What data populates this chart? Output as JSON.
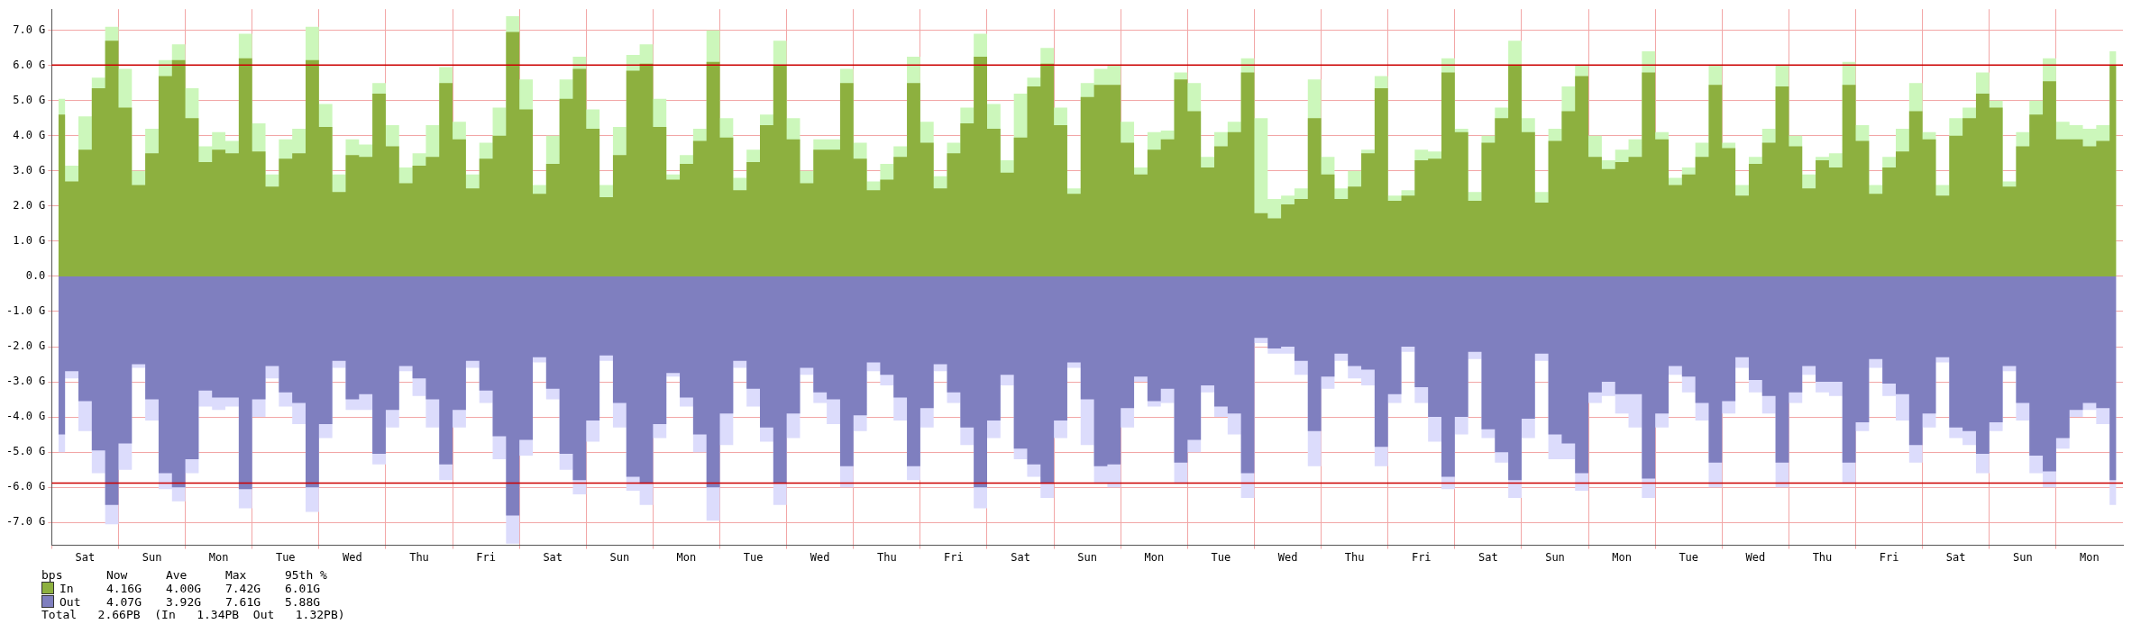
{
  "chart_data": {
    "type": "area",
    "categories": [
      null,
      null,
      "Sat",
      null,
      null,
      null,
      null,
      "Sun",
      null,
      null,
      null,
      null,
      "Mon",
      null,
      null,
      null,
      null,
      "Tue",
      null,
      null,
      null,
      null,
      "Wed",
      null,
      null,
      null,
      null,
      "Thu",
      null,
      null,
      null,
      null,
      "Fri",
      null,
      null,
      null,
      null,
      "Sat",
      null,
      null,
      null,
      null,
      "Sun",
      null,
      null,
      null,
      null,
      "Mon",
      null,
      null,
      null,
      null,
      "Tue",
      null,
      null,
      null,
      null,
      "Wed",
      null,
      null,
      null,
      null,
      "Thu",
      null,
      null,
      null,
      null,
      "Fri",
      null,
      null,
      null,
      null,
      "Sat",
      null,
      null,
      null,
      null,
      "Sun",
      null,
      null,
      null,
      null,
      "Mon",
      null,
      null,
      null,
      null,
      "Tue",
      null,
      null,
      null,
      null,
      "Wed",
      null,
      null,
      null,
      null,
      "Thu",
      null,
      null,
      null,
      null,
      "Fri",
      null,
      null,
      null,
      null,
      "Sat",
      null,
      null,
      null,
      null,
      "Sun",
      null,
      null,
      null,
      null,
      "Mon",
      null,
      null,
      null,
      null,
      "Tue",
      null,
      null,
      null,
      null,
      "Wed",
      null,
      null,
      null,
      null,
      "Thu",
      null,
      null,
      null,
      null,
      "Fri",
      null,
      null,
      null,
      null,
      "Sat",
      null,
      null,
      null,
      null,
      "Sun",
      null,
      null,
      null,
      null,
      "Mon",
      null,
      null
    ],
    "series": [
      {
        "name": "In",
        "color": "#8db03f",
        "values": [
          4.6,
          2.7,
          3.6,
          5.35,
          6.7,
          4.8,
          2.6,
          3.5,
          5.7,
          6.15,
          4.5,
          3.25,
          3.6,
          3.5,
          6.2,
          3.55,
          2.55,
          3.35,
          3.5,
          6.15,
          4.25,
          2.4,
          3.45,
          3.4,
          5.2,
          3.7,
          2.65,
          3.15,
          3.4,
          5.5,
          3.9,
          2.5,
          3.35,
          4.0,
          6.95,
          4.75,
          2.35,
          3.2,
          5.05,
          5.9,
          4.2,
          2.25,
          3.45,
          5.85,
          6.05,
          4.25,
          2.75,
          3.2,
          3.85,
          6.1,
          3.95,
          2.45,
          3.25,
          4.3,
          6.0,
          3.9,
          2.65,
          3.6,
          3.6,
          5.5,
          3.35,
          2.45,
          2.75,
          3.4,
          5.5,
          3.8,
          2.5,
          3.5,
          4.35,
          6.25,
          4.2,
          2.95,
          3.95,
          5.4,
          6.05,
          4.3,
          2.35,
          5.1,
          5.45,
          5.45,
          3.8,
          2.9,
          3.6,
          3.9,
          5.6,
          4.7,
          3.1,
          3.7,
          4.1,
          5.8,
          1.8,
          1.65,
          2.05,
          2.2,
          4.5,
          2.9,
          2.2,
          2.55,
          3.5,
          5.35,
          2.15,
          2.3,
          3.3,
          3.35,
          5.8,
          4.1,
          2.15,
          3.8,
          4.5,
          6.0,
          4.1,
          2.1,
          3.85,
          4.7,
          5.7,
          3.4,
          3.05,
          3.25,
          3.4,
          5.8,
          3.9,
          2.6,
          2.9,
          3.4,
          5.45,
          3.65,
          2.3,
          3.2,
          3.8,
          5.4,
          3.7,
          2.5,
          3.3,
          3.1,
          5.45,
          3.85,
          2.35,
          3.1,
          3.55,
          4.7,
          3.9,
          2.3,
          4.0,
          4.5,
          5.2,
          4.8,
          2.55,
          3.7,
          4.6,
          5.55,
          3.9,
          3.9,
          3.7,
          3.85,
          6.0
        ]
      },
      {
        "name": "Out",
        "color": "#7f7fbf",
        "values": [
          -4.5,
          -2.7,
          -3.55,
          -4.95,
          -6.5,
          -4.75,
          -2.5,
          -3.5,
          -5.6,
          -6.0,
          -5.2,
          -3.25,
          -3.45,
          -3.45,
          -6.05,
          -3.5,
          -2.55,
          -3.3,
          -3.6,
          -6.0,
          -4.2,
          -2.4,
          -3.5,
          -3.35,
          -5.05,
          -3.8,
          -2.55,
          -2.9,
          -3.5,
          -5.35,
          -3.8,
          -2.4,
          -3.25,
          -4.55,
          -6.8,
          -4.65,
          -2.3,
          -3.2,
          -5.05,
          -5.8,
          -4.1,
          -2.25,
          -3.6,
          -5.7,
          -5.9,
          -4.2,
          -2.75,
          -3.45,
          -4.5,
          -6.0,
          -3.9,
          -2.4,
          -3.2,
          -4.3,
          -5.9,
          -3.9,
          -2.6,
          -3.3,
          -3.5,
          -5.4,
          -3.95,
          -2.45,
          -2.8,
          -3.45,
          -5.4,
          -3.75,
          -2.5,
          -3.3,
          -4.3,
          -6.0,
          -4.1,
          -2.8,
          -4.9,
          -5.35,
          -5.9,
          -4.1,
          -2.45,
          -3.5,
          -5.4,
          -5.35,
          -3.75,
          -2.85,
          -3.55,
          -3.2,
          -5.3,
          -4.65,
          -3.1,
          -3.7,
          -3.9,
          -5.6,
          -1.75,
          -2.05,
          -2.0,
          -2.4,
          -4.4,
          -2.85,
          -2.2,
          -2.55,
          -2.65,
          -4.85,
          -3.35,
          -2.0,
          -3.15,
          -4.0,
          -5.7,
          -4.0,
          -2.15,
          -4.35,
          -5.0,
          -5.8,
          -4.05,
          -2.2,
          -4.5,
          -4.75,
          -5.6,
          -3.3,
          -3.0,
          -3.35,
          -3.35,
          -5.75,
          -3.9,
          -2.55,
          -2.85,
          -3.6,
          -5.3,
          -3.55,
          -2.3,
          -2.95,
          -3.4,
          -5.3,
          -3.3,
          -2.55,
          -3.0,
          -3.0,
          -5.3,
          -4.15,
          -2.35,
          -3.05,
          -3.35,
          -4.8,
          -3.9,
          -2.3,
          -4.3,
          -4.4,
          -5.05,
          -4.15,
          -2.55,
          -3.6,
          -5.1,
          -5.55,
          -4.6,
          -3.8,
          -3.6,
          -3.75,
          -5.8
        ]
      },
      {
        "color": "#ccf7bb",
        "values": [
          5.05,
          3.15,
          4.55,
          5.65,
          7.1,
          5.9,
          3.0,
          4.2,
          6.15,
          6.6,
          5.35,
          3.7,
          4.1,
          3.85,
          6.9,
          4.35,
          2.9,
          3.9,
          4.2,
          7.1,
          4.9,
          2.9,
          3.9,
          3.75,
          5.5,
          4.3,
          3.1,
          3.5,
          4.3,
          5.95,
          4.4,
          2.9,
          3.8,
          4.8,
          7.4,
          5.6,
          2.6,
          4.0,
          5.6,
          6.25,
          4.75,
          2.6,
          4.25,
          6.3,
          6.6,
          5.05,
          2.9,
          3.45,
          4.2,
          7.0,
          4.5,
          2.8,
          3.6,
          4.6,
          6.7,
          4.5,
          3.0,
          3.9,
          3.9,
          5.9,
          3.8,
          2.7,
          3.2,
          3.7,
          6.25,
          4.4,
          2.85,
          3.8,
          4.8,
          6.9,
          4.9,
          3.3,
          5.2,
          5.65,
          6.5,
          4.8,
          2.5,
          5.5,
          5.9,
          6.0,
          4.4,
          3.1,
          4.1,
          4.15,
          5.8,
          5.5,
          3.4,
          4.1,
          4.4,
          6.2,
          4.5,
          2.2,
          2.3,
          2.5,
          5.6,
          3.4,
          2.5,
          3.0,
          3.6,
          5.7,
          2.3,
          2.45,
          3.6,
          3.55,
          6.2,
          4.2,
          2.4,
          4.0,
          4.8,
          6.7,
          4.5,
          2.4,
          4.2,
          5.4,
          6.0,
          4.0,
          3.3,
          3.6,
          3.9,
          6.4,
          4.1,
          2.8,
          3.1,
          3.8,
          6.0,
          3.8,
          2.6,
          3.4,
          4.2,
          6.0,
          4.0,
          2.9,
          3.4,
          3.5,
          6.1,
          4.3,
          2.6,
          3.4,
          4.2,
          5.5,
          4.1,
          2.6,
          4.5,
          4.8,
          5.8,
          5.0,
          2.7,
          4.1,
          5.0,
          6.2,
          4.4,
          4.3,
          4.2,
          4.3,
          6.4
        ]
      },
      {
        "color": "#dcdcfc",
        "values": [
          -5.0,
          -2.9,
          -4.4,
          -5.6,
          -7.05,
          -5.5,
          -2.6,
          -4.1,
          -6.05,
          -6.4,
          -5.6,
          -3.7,
          -3.8,
          -3.7,
          -6.6,
          -4.0,
          -2.9,
          -3.7,
          -4.2,
          -6.7,
          -4.6,
          -2.6,
          -3.8,
          -3.8,
          -5.35,
          -4.3,
          -2.7,
          -3.4,
          -4.3,
          -5.8,
          -4.3,
          -2.6,
          -3.6,
          -5.2,
          -7.6,
          -5.1,
          -2.45,
          -3.5,
          -5.5,
          -6.2,
          -4.7,
          -2.4,
          -4.3,
          -6.1,
          -6.5,
          -4.6,
          -2.85,
          -3.7,
          -5.0,
          -6.95,
          -4.8,
          -2.6,
          -3.7,
          -4.7,
          -6.5,
          -4.6,
          -2.8,
          -3.6,
          -4.2,
          -6.0,
          -4.4,
          -2.7,
          -3.1,
          -4.1,
          -5.8,
          -4.3,
          -2.7,
          -3.6,
          -4.8,
          -6.6,
          -4.6,
          -3.1,
          -5.2,
          -5.7,
          -6.3,
          -4.6,
          -2.6,
          -4.8,
          -5.9,
          -6.0,
          -4.3,
          -3.0,
          -3.7,
          -3.6,
          -5.9,
          -5.0,
          -3.3,
          -4.0,
          -4.5,
          -6.3,
          -1.9,
          -2.2,
          -2.2,
          -2.8,
          -5.4,
          -3.2,
          -2.4,
          -2.9,
          -3.1,
          -5.4,
          -3.6,
          -2.15,
          -3.6,
          -4.7,
          -6.05,
          -4.5,
          -2.35,
          -4.6,
          -5.3,
          -6.3,
          -4.6,
          -2.4,
          -5.2,
          -5.2,
          -6.1,
          -3.6,
          -3.4,
          -3.9,
          -4.3,
          -6.3,
          -4.3,
          -2.8,
          -3.3,
          -4.1,
          -6.0,
          -3.9,
          -2.6,
          -3.3,
          -3.9,
          -6.0,
          -3.6,
          -2.8,
          -3.3,
          -3.4,
          -5.9,
          -4.4,
          -2.6,
          -3.4,
          -4.1,
          -5.3,
          -4.3,
          -2.45,
          -4.6,
          -4.8,
          -5.6,
          -4.4,
          -2.7,
          -4.1,
          -5.6,
          -6.0,
          -4.9,
          -4.0,
          -3.8,
          -4.2,
          -6.5
        ]
      }
    ],
    "ylim": [
      -7.65,
      7.6
    ],
    "yticks": [
      {
        "value": -7,
        "label": "-7.0 G"
      },
      {
        "value": -6,
        "label": "-6.0 G"
      },
      {
        "value": -5,
        "label": "-5.0 G"
      },
      {
        "value": -4,
        "label": "-4.0 G"
      },
      {
        "value": -3,
        "label": "-3.0 G"
      },
      {
        "value": -2,
        "label": "-2.0 G"
      },
      {
        "value": -1,
        "label": "-1.0 G"
      },
      {
        "value": 0,
        "label": "0.0"
      },
      {
        "value": 1,
        "label": "1.0 G"
      },
      {
        "value": 2,
        "label": "2.0 G"
      },
      {
        "value": 3,
        "label": "3.0 G"
      },
      {
        "value": 4,
        "label": "4.0 G"
      },
      {
        "value": 5,
        "label": "5.0 G"
      },
      {
        "value": 6,
        "label": "6.0 G"
      },
      {
        "value": 7,
        "label": "7.0 G"
      }
    ],
    "ref_lines": [
      {
        "axis": "y",
        "value": 6.01,
        "color": "#cc0000"
      },
      {
        "axis": "y",
        "value": -5.88,
        "color": "#cc0000"
      }
    ],
    "grid": true,
    "legend": "bottom left",
    "annotations": [
      "bps",
      "Now",
      "Ave",
      "Max",
      "95th %",
      "4.16G",
      "4.00G",
      "7.42G",
      "6.01G",
      "4.07G",
      "3.92G",
      "7.61G",
      "5.88G",
      "Total   2.66PB  (In   1.34PB  Out   1.32PB)"
    ]
  }
}
